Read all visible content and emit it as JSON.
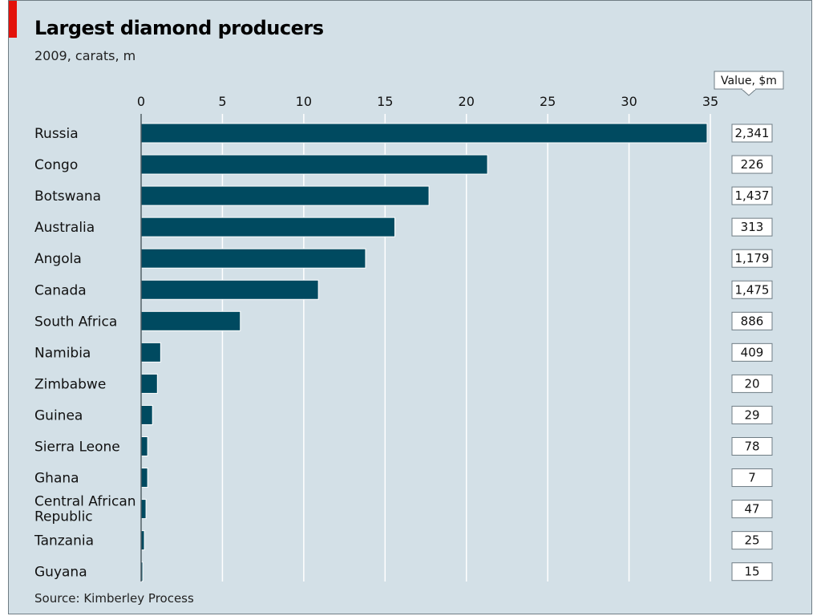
{
  "title": "Largest diamond producers",
  "subtitle": "2009, carats, m",
  "source": "Source: Kimberley Process",
  "value_header": "Value, $m",
  "colors": {
    "bar": "#004a60",
    "accent": "#e3120b",
    "background": "#d3e0e7",
    "grid": "#ffffff"
  },
  "chart_data": {
    "type": "bar",
    "orientation": "horizontal",
    "title": "Largest diamond producers",
    "subtitle": "2009, carats, m",
    "xlim": [
      0,
      35
    ],
    "xticks": [
      0,
      5,
      10,
      15,
      20,
      25,
      30,
      35
    ],
    "grid": true,
    "categories": [
      "Russia",
      "Congo",
      "Botswana",
      "Australia",
      "Angola",
      "Canada",
      "South Africa",
      "Namibia",
      "Zimbabwe",
      "Guinea",
      "Sierra Leone",
      "Ghana",
      "Central African Republic",
      "Tanzania",
      "Guyana"
    ],
    "category_lines": [
      [
        "Russia"
      ],
      [
        "Congo"
      ],
      [
        "Botswana"
      ],
      [
        "Australia"
      ],
      [
        "Angola"
      ],
      [
        "Canada"
      ],
      [
        "South Africa"
      ],
      [
        "Namibia"
      ],
      [
        "Zimbabwe"
      ],
      [
        "Guinea"
      ],
      [
        "Sierra Leone"
      ],
      [
        "Ghana"
      ],
      [
        "Central African",
        "Republic"
      ],
      [
        "Tanzania"
      ],
      [
        "Guyana"
      ]
    ],
    "values": [
      34.8,
      21.3,
      17.7,
      15.6,
      13.8,
      10.9,
      6.1,
      1.2,
      1.0,
      0.7,
      0.4,
      0.4,
      0.3,
      0.2,
      0.1
    ],
    "value_usd_m": [
      "2,341",
      "226",
      "1,437",
      "313",
      "1,179",
      "1,475",
      "886",
      "409",
      "20",
      "29",
      "78",
      "7",
      "47",
      "25",
      "15"
    ]
  }
}
